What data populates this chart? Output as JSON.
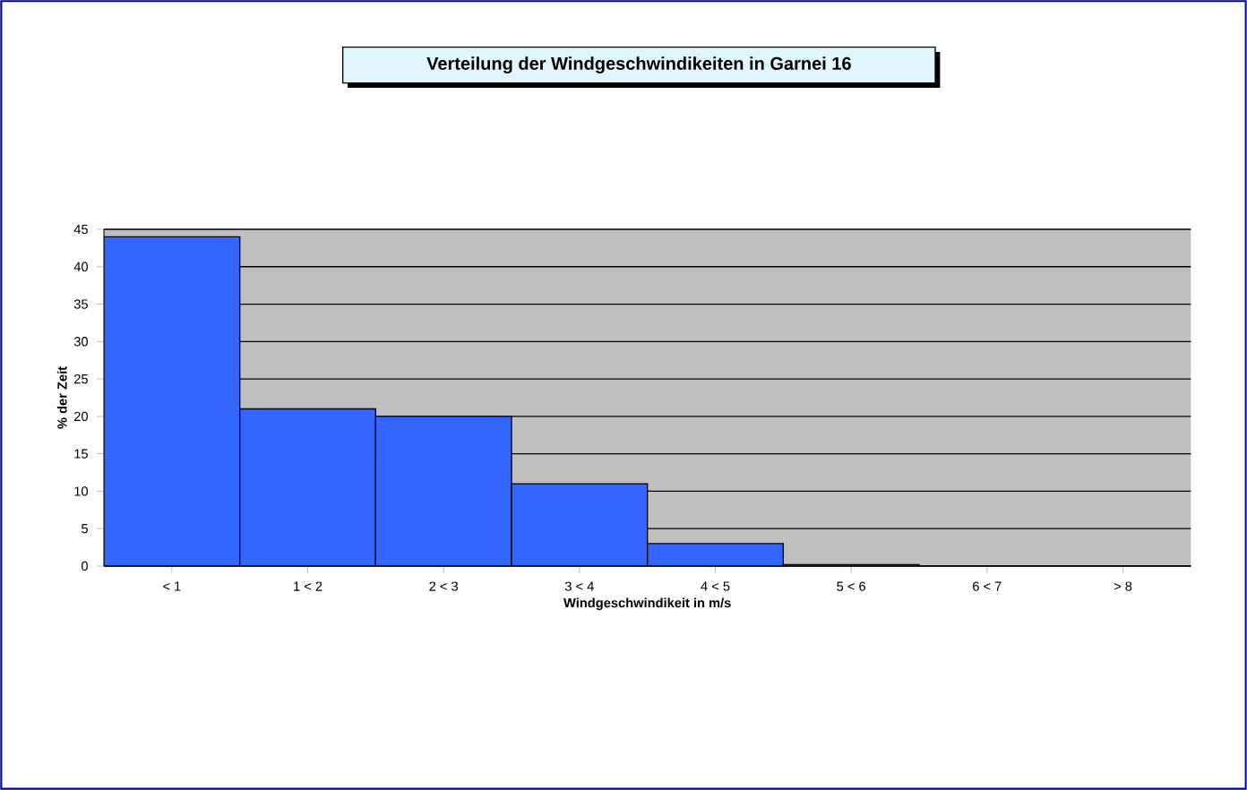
{
  "chart_data": {
    "type": "bar",
    "title": "Verteilung der Windgeschwindikeiten in Garnei 16",
    "xlabel": "Windgeschwindikeit in m/s",
    "ylabel": "% der Zeit",
    "categories": [
      "< 1",
      "1 < 2",
      "2 < 3",
      "3 < 4",
      "4 < 5",
      "5 < 6",
      "6 < 7",
      "> 8"
    ],
    "values": [
      44,
      21,
      20,
      11,
      3,
      0.2,
      0,
      0
    ],
    "color": "#3366ff",
    "ylim": [
      0,
      45
    ],
    "yticks": [
      0,
      5,
      10,
      15,
      20,
      25,
      30,
      35,
      40,
      45
    ],
    "grid": "y"
  }
}
